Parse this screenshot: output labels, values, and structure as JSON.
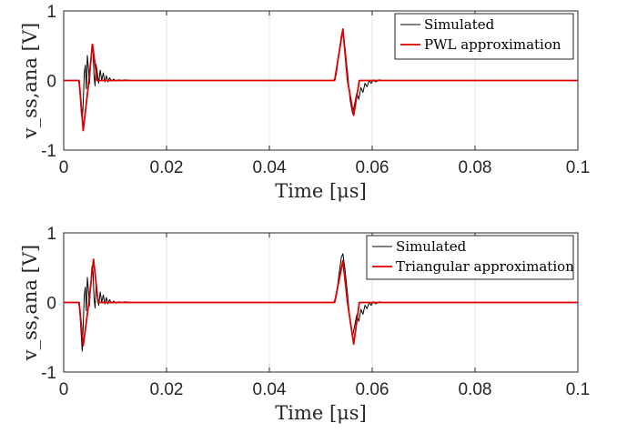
{
  "chart_data": [
    {
      "type": "line",
      "xlim": [
        0,
        0.1
      ],
      "ylim": [
        -1,
        1
      ],
      "xticks": [
        "0",
        "0.02",
        "0.04",
        "0.06",
        "0.08",
        "0.1"
      ],
      "yticks": [
        "1",
        "0",
        "-1"
      ],
      "xlabel": "Time [μs]",
      "ylabel": "v_ss,ana [V]",
      "legend_position": "top-right",
      "grid": "vertical",
      "series": [
        {
          "name": "Simulated",
          "color": "#000000",
          "points": [
            [
              0,
              0
            ],
            [
              0.0029,
              0
            ],
            [
              0.0031,
              -0.1
            ],
            [
              0.0034,
              -0.45
            ],
            [
              0.0036,
              -0.57
            ],
            [
              0.0038,
              -0.32
            ],
            [
              0.004,
              0.1
            ],
            [
              0.0042,
              0.22
            ],
            [
              0.0044,
              -0.12
            ],
            [
              0.0046,
              0.36
            ],
            [
              0.0048,
              0.18
            ],
            [
              0.005,
              -0.05
            ],
            [
              0.0053,
              0.32
            ],
            [
              0.0055,
              0.52
            ],
            [
              0.0057,
              0.46
            ],
            [
              0.0059,
              0.06
            ],
            [
              0.0061,
              -0.08
            ],
            [
              0.0063,
              0.23
            ],
            [
              0.0066,
              0.08
            ],
            [
              0.0068,
              -0.04
            ],
            [
              0.0071,
              0.15
            ],
            [
              0.0074,
              0.0
            ],
            [
              0.0077,
              0.11
            ],
            [
              0.008,
              -0.02
            ],
            [
              0.0083,
              0.07
            ],
            [
              0.0086,
              -0.02
            ],
            [
              0.0089,
              0.04
            ],
            [
              0.0093,
              -0.01
            ],
            [
              0.0097,
              0.02
            ],
            [
              0.0102,
              -0.01
            ],
            [
              0.0107,
              0.01
            ],
            [
              0.0113,
              0.0
            ],
            [
              0.012,
              0.01
            ],
            [
              0.013,
              0
            ],
            [
              0.0525,
              0
            ],
            [
              0.053,
              0.08
            ],
            [
              0.0535,
              0.38
            ],
            [
              0.054,
              0.65
            ],
            [
              0.0543,
              0.72
            ],
            [
              0.0547,
              0.48
            ],
            [
              0.0552,
              0.12
            ],
            [
              0.0557,
              -0.28
            ],
            [
              0.0562,
              -0.48
            ],
            [
              0.0566,
              -0.33
            ],
            [
              0.057,
              -0.18
            ],
            [
              0.0574,
              -0.27
            ],
            [
              0.0578,
              -0.1
            ],
            [
              0.0582,
              -0.17
            ],
            [
              0.0586,
              -0.04
            ],
            [
              0.059,
              -0.09
            ],
            [
              0.0594,
              0.0
            ],
            [
              0.0598,
              -0.04
            ],
            [
              0.0602,
              0.01
            ],
            [
              0.0607,
              -0.02
            ],
            [
              0.0613,
              0.01
            ],
            [
              0.062,
              0.0
            ],
            [
              0.063,
              0
            ],
            [
              0.1,
              0
            ]
          ]
        },
        {
          "name": "PWL approximation",
          "color": "#e00000",
          "points": [
            [
              0,
              0
            ],
            [
              0.003,
              0
            ],
            [
              0.0038,
              -0.72
            ],
            [
              0.0049,
              0.0
            ],
            [
              0.0056,
              0.52
            ],
            [
              0.0065,
              0.0
            ],
            [
              0.0527,
              0.0
            ],
            [
              0.0543,
              0.74
            ],
            [
              0.0552,
              0.0
            ],
            [
              0.0564,
              -0.5
            ],
            [
              0.0575,
              0.0
            ],
            [
              0.1,
              0
            ]
          ]
        }
      ]
    },
    {
      "type": "line",
      "xlim": [
        0,
        0.1
      ],
      "ylim": [
        -1,
        1
      ],
      "xticks": [
        "0",
        "0.02",
        "0.04",
        "0.06",
        "0.08",
        "0.1"
      ],
      "yticks": [
        "1",
        "0",
        "-1"
      ],
      "xlabel": "Time [μs]",
      "ylabel": "v_ss,ana [V]",
      "legend_position": "top-right",
      "grid": "vertical",
      "series": [
        {
          "name": "Simulated",
          "color": "#000000",
          "points": [
            [
              0,
              0
            ],
            [
              0.0029,
              0
            ],
            [
              0.0031,
              -0.1
            ],
            [
              0.0034,
              -0.45
            ],
            [
              0.0036,
              -0.7
            ],
            [
              0.0038,
              -0.32
            ],
            [
              0.004,
              0.1
            ],
            [
              0.0042,
              0.22
            ],
            [
              0.0044,
              -0.12
            ],
            [
              0.0046,
              0.36
            ],
            [
              0.0048,
              0.18
            ],
            [
              0.005,
              -0.05
            ],
            [
              0.0053,
              0.32
            ],
            [
              0.0055,
              0.52
            ],
            [
              0.0057,
              0.46
            ],
            [
              0.0059,
              0.06
            ],
            [
              0.0061,
              -0.08
            ],
            [
              0.0063,
              0.23
            ],
            [
              0.0066,
              0.08
            ],
            [
              0.0068,
              -0.04
            ],
            [
              0.0071,
              0.15
            ],
            [
              0.0074,
              0.0
            ],
            [
              0.0077,
              0.11
            ],
            [
              0.008,
              -0.02
            ],
            [
              0.0083,
              0.07
            ],
            [
              0.0086,
              -0.02
            ],
            [
              0.0089,
              0.04
            ],
            [
              0.0093,
              -0.01
            ],
            [
              0.0097,
              0.02
            ],
            [
              0.0102,
              -0.01
            ],
            [
              0.0107,
              0.01
            ],
            [
              0.0113,
              0.0
            ],
            [
              0.012,
              0.01
            ],
            [
              0.013,
              0
            ],
            [
              0.0525,
              0
            ],
            [
              0.053,
              0.08
            ],
            [
              0.0535,
              0.38
            ],
            [
              0.054,
              0.65
            ],
            [
              0.0543,
              0.7
            ],
            [
              0.0547,
              0.48
            ],
            [
              0.0552,
              0.12
            ],
            [
              0.0557,
              -0.28
            ],
            [
              0.0562,
              -0.48
            ],
            [
              0.0566,
              -0.33
            ],
            [
              0.057,
              -0.18
            ],
            [
              0.0574,
              -0.27
            ],
            [
              0.0578,
              -0.1
            ],
            [
              0.0582,
              -0.17
            ],
            [
              0.0586,
              -0.04
            ],
            [
              0.059,
              -0.09
            ],
            [
              0.0594,
              0.0
            ],
            [
              0.0598,
              -0.04
            ],
            [
              0.0602,
              0.01
            ],
            [
              0.0607,
              -0.02
            ],
            [
              0.0613,
              0.01
            ],
            [
              0.062,
              0.0
            ],
            [
              0.063,
              0
            ],
            [
              0.1,
              0
            ]
          ]
        },
        {
          "name": "Triangular approximation",
          "color": "#e00000",
          "points": [
            [
              0,
              0
            ],
            [
              0.003,
              0
            ],
            [
              0.0038,
              -0.62
            ],
            [
              0.0049,
              0.0
            ],
            [
              0.0058,
              0.62
            ],
            [
              0.0067,
              0.0
            ],
            [
              0.0527,
              0.0
            ],
            [
              0.0543,
              0.6
            ],
            [
              0.0552,
              0.0
            ],
            [
              0.0564,
              -0.6
            ],
            [
              0.0575,
              0.0
            ],
            [
              0.1,
              0
            ]
          ]
        }
      ]
    }
  ]
}
